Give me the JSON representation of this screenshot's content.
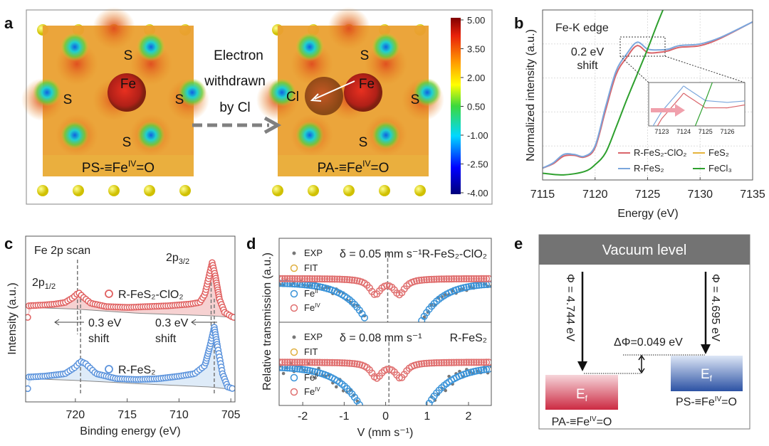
{
  "panel_labels": [
    "a",
    "b",
    "c",
    "d",
    "e"
  ],
  "panel_a": {
    "arrow_text": [
      "Electron",
      "withdrawn",
      "by Cl"
    ],
    "left_atoms": [
      "S",
      "Fe",
      "S",
      "S",
      "S"
    ],
    "right_atoms": [
      "S",
      "Fe",
      "Cl",
      "S",
      "S"
    ],
    "left_caption": {
      "prefix": "PS-≡Fe",
      "sup": "IV",
      "suffix": "=O"
    },
    "right_caption": {
      "prefix": "PA-≡Fe",
      "sup": "IV",
      "suffix": "=O"
    },
    "colorbar": {
      "ticks": [
        "5.00",
        "3.50",
        "2.00",
        "0.50",
        "-1.00",
        "-2.50",
        "-4.00"
      ],
      "range": [
        -4,
        5
      ]
    }
  },
  "panel_e": {
    "header": "Vacuum level",
    "phi_left": "Φ = 4.744 eV",
    "phi_right": "Φ = 4.695 eV",
    "delta": "ΔΦ=0.049 eV",
    "ef": {
      "main": "E",
      "sub": "f"
    },
    "left_label": {
      "prefix": "PA-≡Fe",
      "sup": "IV",
      "suffix": "=O"
    },
    "right_label": {
      "prefix": "PS-≡Fe",
      "sup": "IV",
      "suffix": "=O"
    },
    "colors": {
      "left": "#d0304a",
      "right": "#2f58a8",
      "header": "#737373"
    }
  },
  "chart_data": [
    {
      "panel": "b",
      "type": "line",
      "title": "Fe-K edge",
      "annotation": [
        "0.2 eV",
        "shift"
      ],
      "xlabel": "Energy (eV)",
      "ylabel": "Normalized intensity (a.u.)",
      "xlim": [
        7115,
        7135
      ],
      "ylim": [
        0,
        1
      ],
      "xticks": [
        "7115",
        "7120",
        "7125",
        "7130",
        "7135"
      ],
      "grid": true,
      "legend_position": "bottom-right",
      "series": [
        {
          "name": "R-FeS₂-ClO₂",
          "color": "#d9646a",
          "x": [
            7115,
            7116,
            7117,
            7118,
            7119,
            7120,
            7121,
            7122,
            7123,
            7124,
            7125,
            7126,
            7127,
            7128,
            7130,
            7132,
            7135
          ],
          "y": [
            0.07,
            0.095,
            0.14,
            0.145,
            0.135,
            0.19,
            0.41,
            0.62,
            0.72,
            0.79,
            0.75,
            0.75,
            0.76,
            0.78,
            0.79,
            0.835,
            0.93
          ]
        },
        {
          "name": "R-FeS₂",
          "color": "#7aa6dc",
          "x": [
            7115,
            7116,
            7117,
            7118,
            7119,
            7120,
            7121,
            7122,
            7123,
            7124,
            7125,
            7126,
            7127,
            7128,
            7130,
            7132,
            7135
          ],
          "y": [
            0.07,
            0.1,
            0.15,
            0.15,
            0.14,
            0.2,
            0.43,
            0.64,
            0.74,
            0.81,
            0.77,
            0.765,
            0.77,
            0.79,
            0.8,
            0.84,
            0.93
          ]
        },
        {
          "name": "FeS₂",
          "color": "#e6b43c",
          "x": [],
          "y": []
        },
        {
          "name": "FeCl₃",
          "color": "#2ea02e",
          "x": [
            7115,
            7117,
            7119,
            7120,
            7121,
            7122,
            7123,
            7124,
            7125,
            7126,
            7127
          ],
          "y": [
            0.04,
            0.03,
            0.05,
            0.09,
            0.16,
            0.31,
            0.47,
            0.62,
            0.77,
            0.93,
            1.08
          ]
        }
      ],
      "inset": {
        "xticks": [
          "7123",
          "7124",
          "7125",
          "7126"
        ],
        "xlim": [
          7122.4,
          7126.8
        ]
      }
    },
    {
      "panel": "c",
      "type": "scatter",
      "title": "Fe 2p scan",
      "xlabel": "Binding energy (eV)",
      "ylabel": "Intensity (a.u.)",
      "xlim": [
        724.8,
        704.6
      ],
      "ylim": [
        0,
        1
      ],
      "xticks": [
        "720",
        "715",
        "710",
        "705"
      ],
      "peak_labels": [
        {
          "main": "2p",
          "sub": "1/2"
        },
        {
          "main": "2p",
          "sub": "3/2"
        }
      ],
      "shift_labels": [
        [
          "0.3 eV",
          "shift"
        ],
        [
          "0.3 eV",
          "shift"
        ]
      ],
      "series": [
        {
          "name": "R-FeS₂-ClO₂",
          "color": "#e06060",
          "x": [
            724.5,
            723,
            722,
            721,
            720.2,
            719.7,
            719.2,
            718.5,
            717,
            715,
            713,
            711,
            709,
            708,
            707.5,
            707.1,
            706.8,
            706.5,
            706.1,
            705.6,
            704.8
          ],
          "y": [
            0.58,
            0.585,
            0.59,
            0.6,
            0.63,
            0.66,
            0.63,
            0.595,
            0.575,
            0.57,
            0.575,
            0.58,
            0.59,
            0.6,
            0.65,
            0.76,
            0.84,
            0.76,
            0.62,
            0.54,
            0.51
          ],
          "background": {
            "x": [
              724.5,
              720,
              714,
              707,
              704.8
            ],
            "y": [
              0.57,
              0.56,
              0.535,
              0.52,
              0.51
            ]
          }
        },
        {
          "name": "R-FeS₂",
          "color": "#5b93dc",
          "x": [
            724.5,
            723,
            721,
            720,
            719.5,
            719,
            718,
            716,
            714,
            712,
            710,
            708.5,
            707.5,
            707,
            706.6,
            706.3,
            705.8,
            705.3,
            704.8
          ],
          "y": [
            0.15,
            0.155,
            0.17,
            0.21,
            0.245,
            0.23,
            0.17,
            0.14,
            0.135,
            0.14,
            0.155,
            0.17,
            0.22,
            0.34,
            0.45,
            0.34,
            0.17,
            0.09,
            0.08
          ],
          "background": {
            "x": [
              724.5,
              720,
              714,
              707,
              704.8
            ],
            "y": [
              0.14,
              0.13,
              0.11,
              0.09,
              0.075
            ]
          }
        }
      ],
      "ref_lines": [
        719.8,
        719.5,
        706.9,
        706.6
      ]
    },
    {
      "panel": "d",
      "type": "scatter",
      "xlabel": "V (mm s⁻¹)",
      "ylabel": "Relative transmission (a.u.)",
      "xlim": [
        -2.57,
        2.55
      ],
      "xticks": [
        "-2",
        "-1",
        "0",
        "1",
        "2"
      ],
      "legend": [
        "EXP",
        "FIT",
        "Fe",
        "Fe"
      ],
      "legend_sup": [
        "II",
        "IV"
      ],
      "colors": {
        "exp": "#777777",
        "fit": "#e0b040",
        "feII": "#3a93d8",
        "feIV": "#e07070"
      },
      "subplots": [
        {
          "sample": "R-FeS₂-ClO₂",
          "delta": "δ = 0.05 mm s⁻¹",
          "delta_value": 0.05,
          "feIV": {
            "base": 0.52,
            "centers": [
              -0.25,
              0.33
            ],
            "width": 0.16,
            "depth": 0.2
          },
          "feII": {
            "base": 0.47,
            "centers": [
              -0.45,
              0.85
            ],
            "width": 0.5
          }
        },
        {
          "sample": "R-FeS₂",
          "delta": "δ = 0.08 mm s⁻¹",
          "delta_value": 0.08,
          "feIV": {
            "base": 0.52,
            "centers": [
              -0.22,
              0.36
            ],
            "width": 0.16,
            "depth": 0.2
          },
          "feII": {
            "base": 0.47,
            "centers": [
              -0.62,
              1.02
            ],
            "width": 0.55
          }
        }
      ]
    }
  ]
}
